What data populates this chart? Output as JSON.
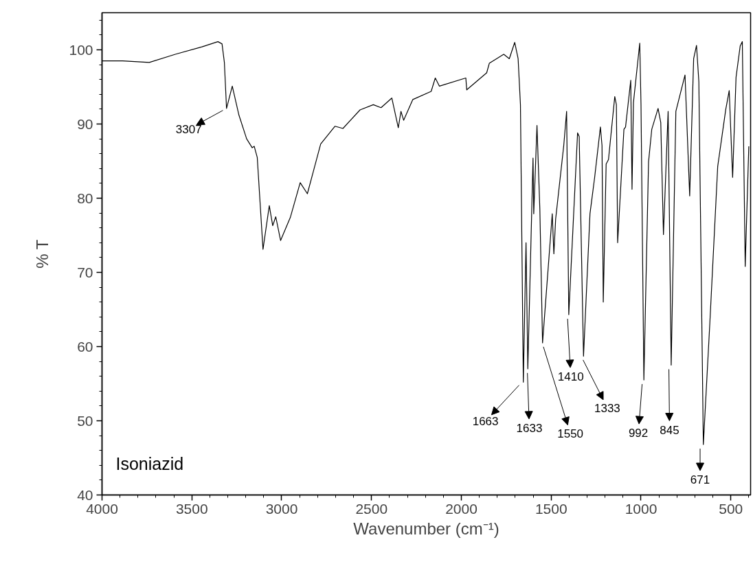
{
  "chart_data": {
    "type": "line",
    "xlabel": "Wavenumber (cm⁻¹)",
    "ylabel": "% T",
    "x": [
      4000,
      3885,
      3737,
      3592,
      3443,
      3355,
      3332,
      3319,
      3307,
      3275,
      3238,
      3195,
      3164,
      3153,
      3136,
      3104,
      3069,
      3050,
      3033,
      3006,
      2952,
      2897,
      2857,
      2783,
      2703,
      2659,
      2564,
      2490,
      2447,
      2387,
      2351,
      2336,
      2321,
      2270,
      2168,
      2145,
      2122,
      1975,
      1970,
      1859,
      1844,
      1764,
      1733,
      1703,
      1684,
      1671,
      1655,
      1640,
      1630,
      1601,
      1597,
      1579,
      1563,
      1548,
      1494,
      1485,
      1475,
      1430,
      1414,
      1402,
      1353,
      1344,
      1320,
      1284,
      1258,
      1226,
      1217,
      1210,
      1194,
      1181,
      1146,
      1137,
      1130,
      1095,
      1086,
      1057,
      1050,
      1042,
      1007,
      1000,
      984,
      958,
      940,
      905,
      890,
      875,
      849,
      832,
      806,
      755,
      729,
      707,
      691,
      678,
      653,
      617,
      573,
      528,
      509,
      490,
      471,
      448,
      436,
      420,
      400
    ],
    "series": [
      {
        "color": "#000000",
        "values": [
          98.5,
          98.5,
          98.3,
          99.4,
          100.4,
          101.1,
          100.8,
          98.3,
          92.1,
          95.1,
          91.2,
          88.0,
          86.8,
          87.0,
          85.5,
          73.1,
          79.0,
          76.3,
          77.5,
          74.3,
          77.4,
          82.1,
          80.6,
          87.3,
          89.7,
          89.4,
          91.9,
          92.6,
          92.2,
          93.5,
          89.5,
          91.7,
          90.5,
          93.3,
          94.4,
          96.2,
          95.1,
          96.2,
          94.6,
          96.9,
          98.2,
          99.4,
          98.8,
          101.0,
          98.8,
          92.6,
          55.2,
          74.0,
          57.0,
          85.4,
          77.9,
          89.8,
          78.5,
          60.5,
          77.9,
          72.5,
          77.2,
          87.1,
          91.7,
          64.3,
          88.8,
          88.3,
          58.7,
          77.9,
          82.8,
          89.6,
          87.1,
          66.0,
          84.6,
          85.2,
          93.7,
          92.6,
          74.0,
          89.3,
          89.6,
          95.9,
          81.2,
          92.9,
          100.9,
          92.6,
          55.5,
          84.9,
          89.3,
          92.1,
          90.2,
          75.1,
          91.7,
          57.5,
          91.7,
          96.6,
          80.3,
          98.8,
          100.6,
          95.7,
          46.8,
          63.1,
          84.3,
          92.0,
          94.5,
          82.8,
          96.3,
          100.5,
          101.1,
          70.8,
          87.0
        ]
      }
    ],
    "xlim": [
      4000,
      390
    ],
    "ylim": [
      40,
      105
    ],
    "xticks": [
      4000,
      3500,
      3000,
      2500,
      2000,
      1500,
      1000,
      500
    ],
    "yticks": [
      40,
      50,
      60,
      70,
      80,
      90,
      100
    ],
    "grid": false,
    "marker": "none",
    "line_style": "solid",
    "annotations": [
      {
        "text": "3307",
        "x": 3307,
        "y": 92.1
      },
      {
        "text": "1663",
        "x": 1663,
        "y": 55.2
      },
      {
        "text": "1633",
        "x": 1633,
        "y": 57.0
      },
      {
        "text": "1550",
        "x": 1550,
        "y": 60.5
      },
      {
        "text": "1410",
        "x": 1410,
        "y": 64.3
      },
      {
        "text": "1333",
        "x": 1333,
        "y": 58.7
      },
      {
        "text": "992",
        "x": 992,
        "y": 55.5
      },
      {
        "text": "845",
        "x": 845,
        "y": 57.5
      },
      {
        "text": "671",
        "x": 671,
        "y": 46.8
      },
      "Isoniazid"
    ]
  }
}
